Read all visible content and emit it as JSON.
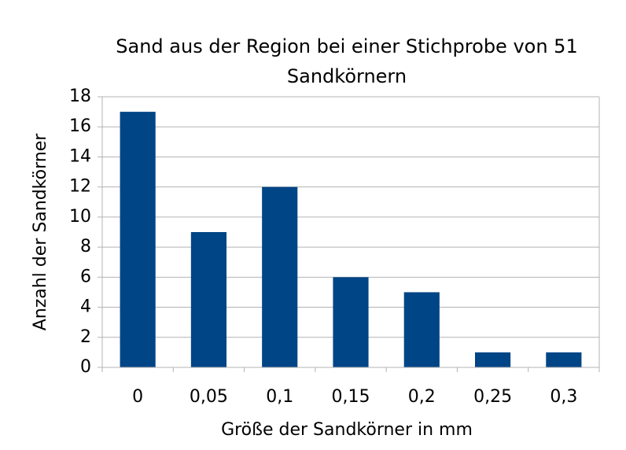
{
  "chart_data": {
    "type": "bar",
    "title": "Sand aus der Region bei einer Stichprobe von 51 Sandkörnern",
    "x_label": "Größe der Sandkörner in mm",
    "y_label": "Anzahl der Sandkörner",
    "categories": [
      "0",
      "0,05",
      "0,1",
      "0,15",
      "0,2",
      "0,25",
      "0,3"
    ],
    "values": [
      17,
      9,
      12,
      6,
      5,
      1,
      1
    ],
    "color": "#004586",
    "ylim": [
      0,
      18
    ],
    "yticks": [
      0,
      2,
      4,
      6,
      8,
      10,
      12,
      14,
      16,
      18
    ],
    "grid": true
  }
}
